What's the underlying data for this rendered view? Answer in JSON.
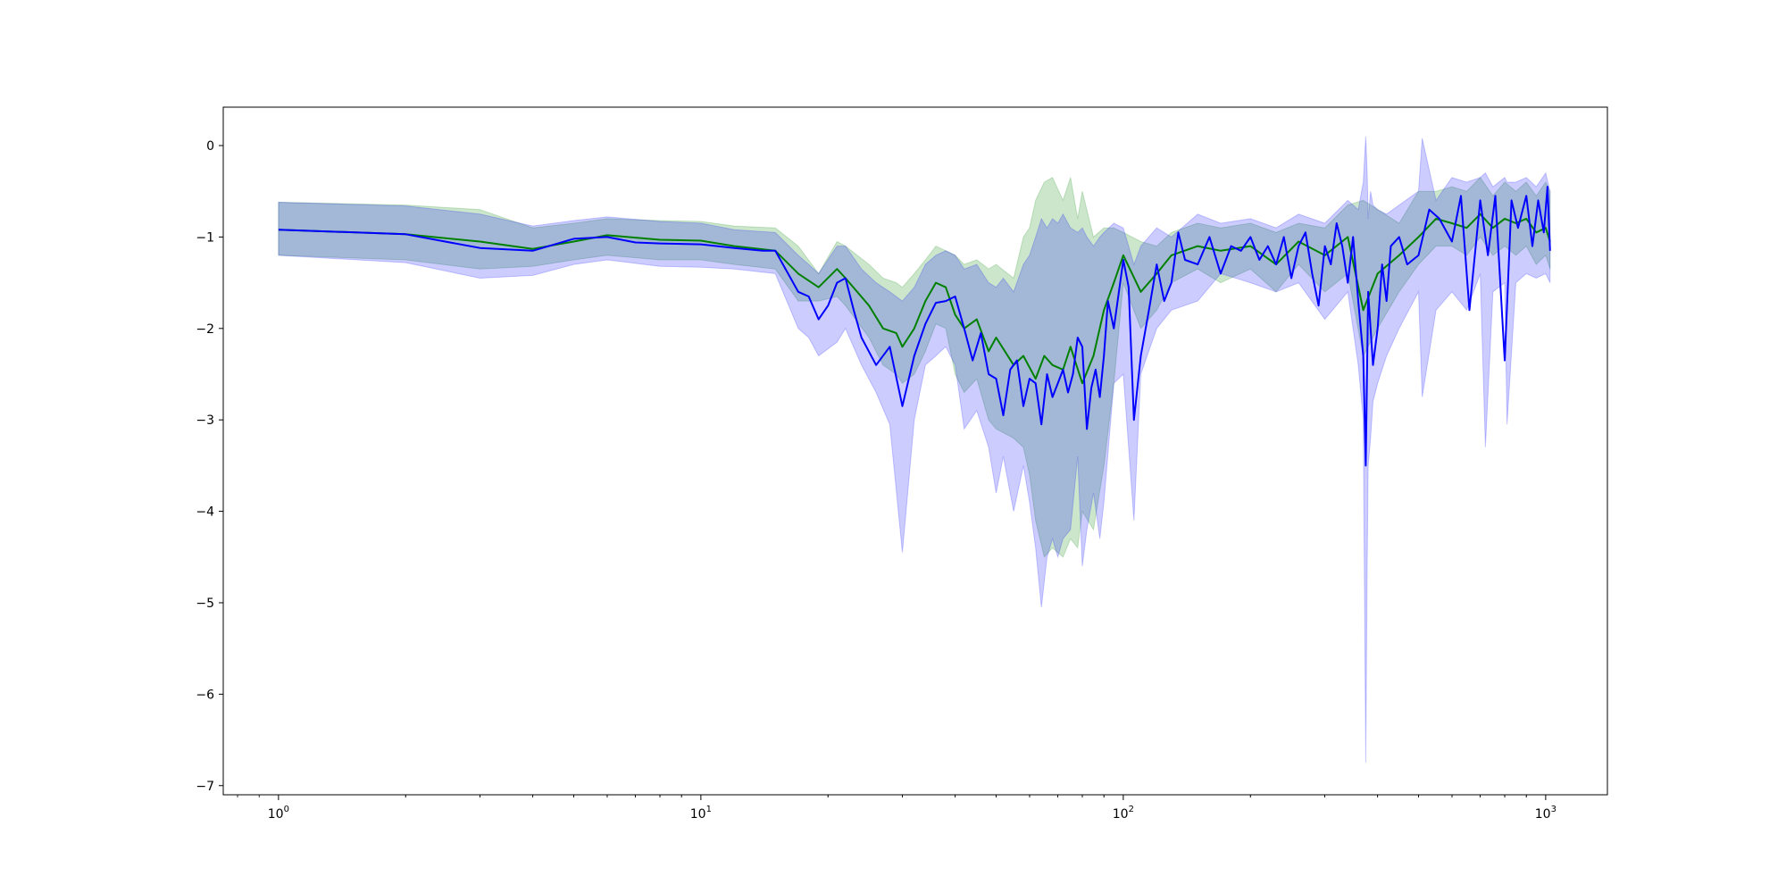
{
  "chart_data": {
    "type": "line",
    "title": "",
    "xlabel": "",
    "ylabel": "",
    "x_scale": "log",
    "xlim": [
      0.74,
      1400
    ],
    "ylim": [
      -7.1,
      0.42
    ],
    "x_ticks": [
      {
        "value": 1,
        "base": "10",
        "exp": "0"
      },
      {
        "value": 10,
        "base": "10",
        "exp": "1"
      },
      {
        "value": 100,
        "base": "10",
        "exp": "2"
      },
      {
        "value": 1000,
        "base": "10",
        "exp": "3"
      }
    ],
    "y_ticks": [
      0,
      -1,
      -2,
      -3,
      -4,
      -5,
      -6,
      -7
    ],
    "y_tick_labels": [
      "0",
      "−1",
      "−2",
      "−3",
      "−4",
      "−5",
      "−6",
      "−7"
    ],
    "grid": false,
    "legend": "none",
    "colors": {
      "green": "#008000",
      "blue": "#0000ff",
      "green_band": "#008000",
      "blue_band": "#0000ff"
    },
    "series": [
      {
        "color": "green",
        "x": [
          1,
          2,
          3,
          4,
          5,
          6,
          8,
          10,
          12,
          15,
          17,
          19,
          21,
          22,
          25,
          27,
          29,
          30,
          32,
          34,
          36,
          38,
          40,
          42,
          45,
          48,
          50,
          55,
          58,
          62,
          65,
          68,
          72,
          75,
          80,
          85,
          90,
          95,
          100,
          110,
          120,
          130,
          150,
          170,
          200,
          230,
          260,
          300,
          340,
          370,
          400,
          450,
          500,
          550,
          600,
          650,
          700,
          750,
          800,
          850,
          900,
          950,
          1000,
          1024
        ],
        "y": [
          -0.92,
          -0.97,
          -1.05,
          -1.13,
          -1.05,
          -0.98,
          -1.03,
          -1.04,
          -1.1,
          -1.15,
          -1.4,
          -1.55,
          -1.35,
          -1.45,
          -1.75,
          -2.0,
          -2.05,
          -2.2,
          -2.0,
          -1.7,
          -1.5,
          -1.55,
          -1.85,
          -2.0,
          -1.9,
          -2.25,
          -2.1,
          -2.4,
          -2.3,
          -2.55,
          -2.3,
          -2.4,
          -2.45,
          -2.2,
          -2.6,
          -2.3,
          -1.8,
          -1.5,
          -1.2,
          -1.6,
          -1.4,
          -1.2,
          -1.1,
          -1.15,
          -1.1,
          -1.3,
          -1.05,
          -1.2,
          -1.0,
          -1.8,
          -1.4,
          -1.2,
          -1.0,
          -0.8,
          -0.85,
          -0.9,
          -0.75,
          -0.9,
          -0.8,
          -0.85,
          -0.8,
          -0.95,
          -0.9,
          -1.05
        ]
      },
      {
        "color": "blue",
        "x": [
          1,
          2,
          3,
          4,
          5,
          6,
          7,
          8,
          10,
          12,
          14,
          15,
          17,
          18,
          19,
          20,
          21,
          22,
          23,
          24,
          26,
          28,
          30,
          32,
          34,
          36,
          38,
          40,
          42,
          44,
          46,
          48,
          50,
          52,
          54,
          56,
          58,
          60,
          62,
          64,
          66,
          68,
          70,
          72,
          74,
          76,
          78,
          80,
          82,
          84,
          86,
          88,
          90,
          92,
          95,
          100,
          103,
          106,
          110,
          115,
          120,
          125,
          130,
          135,
          140,
          150,
          160,
          170,
          180,
          190,
          200,
          210,
          220,
          230,
          240,
          250,
          260,
          270,
          280,
          290,
          300,
          310,
          320,
          330,
          340,
          350,
          360,
          370,
          375,
          380,
          390,
          400,
          410,
          420,
          430,
          450,
          470,
          500,
          530,
          560,
          600,
          630,
          660,
          700,
          730,
          760,
          800,
          830,
          860,
          900,
          930,
          960,
          990,
          1010,
          1024
        ],
        "y": [
          -0.92,
          -0.97,
          -1.12,
          -1.15,
          -1.02,
          -1.0,
          -1.06,
          -1.07,
          -1.08,
          -1.12,
          -1.15,
          -1.15,
          -1.6,
          -1.65,
          -1.9,
          -1.75,
          -1.5,
          -1.45,
          -1.8,
          -2.1,
          -2.4,
          -2.2,
          -2.85,
          -2.3,
          -1.95,
          -1.72,
          -1.7,
          -1.65,
          -2.0,
          -2.35,
          -2.05,
          -2.5,
          -2.55,
          -2.95,
          -2.45,
          -2.35,
          -2.85,
          -2.55,
          -2.6,
          -3.05,
          -2.5,
          -2.75,
          -2.6,
          -2.45,
          -2.7,
          -2.5,
          -2.1,
          -2.2,
          -3.1,
          -2.65,
          -2.45,
          -2.75,
          -2.3,
          -1.7,
          -2.0,
          -1.25,
          -1.55,
          -3.0,
          -2.3,
          -1.8,
          -1.3,
          -1.7,
          -1.5,
          -0.95,
          -1.25,
          -1.3,
          -1.0,
          -1.4,
          -1.1,
          -1.15,
          -1.0,
          -1.25,
          -1.1,
          -1.3,
          -1.0,
          -1.45,
          -1.1,
          -0.95,
          -1.4,
          -1.75,
          -1.1,
          -1.3,
          -0.85,
          -1.1,
          -1.5,
          -1.0,
          -1.7,
          -2.3,
          -3.5,
          -1.6,
          -2.4,
          -2.0,
          -1.3,
          -1.7,
          -1.1,
          -1.0,
          -1.3,
          -1.2,
          -0.7,
          -0.8,
          -1.05,
          -0.55,
          -1.8,
          -0.6,
          -1.2,
          -0.55,
          -2.35,
          -0.6,
          -0.9,
          -0.55,
          -1.1,
          -0.6,
          -0.95,
          -0.45,
          -1.15
        ]
      }
    ],
    "bands": [
      {
        "color": "green_band",
        "x": [
          1,
          2,
          3,
          4,
          5,
          6,
          8,
          10,
          12,
          15,
          17,
          19,
          21,
          22,
          25,
          27,
          29,
          30,
          32,
          34,
          36,
          38,
          40,
          42,
          45,
          48,
          50,
          55,
          58,
          60,
          62,
          65,
          68,
          72,
          75,
          78,
          80,
          85,
          90,
          95,
          100,
          110,
          120,
          130,
          150,
          170,
          200,
          230,
          260,
          300,
          340,
          370,
          400,
          450,
          500,
          550,
          600,
          650,
          700,
          750,
          800,
          850,
          900,
          950,
          1000,
          1024
        ],
        "upper": [
          -0.62,
          -0.65,
          -0.7,
          -0.9,
          -0.85,
          -0.8,
          -0.82,
          -0.83,
          -0.88,
          -0.9,
          -1.1,
          -1.4,
          -1.05,
          -1.1,
          -1.3,
          -1.45,
          -1.5,
          -1.55,
          -1.4,
          -1.25,
          -1.1,
          -1.15,
          -1.2,
          -1.3,
          -1.25,
          -1.35,
          -1.3,
          -1.45,
          -1.0,
          -0.9,
          -0.6,
          -0.4,
          -0.35,
          -0.6,
          -0.35,
          -0.8,
          -0.5,
          -1.0,
          -0.9,
          -0.9,
          -0.95,
          -1.05,
          -1.1,
          -0.95,
          -0.85,
          -0.9,
          -0.85,
          -0.95,
          -0.85,
          -0.9,
          -0.65,
          -0.6,
          -0.7,
          -0.85,
          -0.5,
          -0.5,
          -0.45,
          -0.5,
          -0.35,
          -0.55,
          -0.4,
          -0.5,
          -0.4,
          -0.55,
          -0.4,
          -0.5
        ],
        "lower": [
          -1.2,
          -1.25,
          -1.35,
          -1.32,
          -1.25,
          -1.2,
          -1.25,
          -1.25,
          -1.3,
          -1.35,
          -1.7,
          -1.7,
          -1.65,
          -1.75,
          -2.1,
          -2.4,
          -2.5,
          -2.6,
          -2.5,
          -2.25,
          -1.95,
          -2.0,
          -2.5,
          -2.7,
          -2.55,
          -3.0,
          -3.1,
          -3.2,
          -3.3,
          -3.6,
          -4.1,
          -4.5,
          -4.4,
          -4.5,
          -4.3,
          -4.4,
          -4.0,
          -4.2,
          -3.5,
          -2.6,
          -1.5,
          -2.0,
          -1.8,
          -1.5,
          -1.35,
          -1.5,
          -1.35,
          -1.6,
          -1.3,
          -1.6,
          -1.4,
          -2.3,
          -2.0,
          -1.6,
          -1.3,
          -1.1,
          -1.1,
          -1.2,
          -1.0,
          -1.2,
          -1.1,
          -1.2,
          -1.1,
          -1.3,
          -1.2,
          -1.35
        ]
      },
      {
        "color": "blue_band",
        "x": [
          1,
          2,
          3,
          4,
          5,
          6,
          8,
          10,
          12,
          15,
          17,
          18,
          19,
          21,
          22,
          24,
          26,
          28,
          30,
          32,
          34,
          36,
          38,
          40,
          42,
          45,
          48,
          50,
          52,
          55,
          58,
          60,
          62,
          64,
          66,
          68,
          70,
          72,
          75,
          78,
          80,
          82,
          85,
          88,
          90,
          95,
          100,
          106,
          110,
          120,
          130,
          150,
          170,
          200,
          230,
          260,
          300,
          340,
          360,
          370,
          375,
          378,
          380,
          385,
          390,
          400,
          420,
          450,
          500,
          510,
          550,
          600,
          650,
          700,
          720,
          750,
          800,
          810,
          850,
          900,
          950,
          1000,
          1024
        ],
        "upper": [
          -0.62,
          -0.66,
          -0.75,
          -0.88,
          -0.82,
          -0.78,
          -0.83,
          -0.85,
          -0.92,
          -0.95,
          -1.2,
          -1.3,
          -1.4,
          -1.1,
          -1.1,
          -1.35,
          -1.5,
          -1.6,
          -1.7,
          -1.55,
          -1.3,
          -1.2,
          -1.15,
          -1.2,
          -1.35,
          -1.3,
          -1.5,
          -1.55,
          -1.45,
          -1.6,
          -1.3,
          -1.2,
          -1.0,
          -0.8,
          -0.9,
          -0.8,
          -0.85,
          -0.75,
          -0.9,
          -0.95,
          -0.9,
          -1.0,
          -1.1,
          -1.0,
          -0.95,
          -0.85,
          -0.9,
          -1.3,
          -1.1,
          -0.9,
          -1.0,
          -0.75,
          -0.85,
          -0.8,
          -0.9,
          -0.75,
          -0.85,
          -0.6,
          -0.7,
          -0.4,
          0.1,
          -0.3,
          -0.8,
          -0.5,
          -0.65,
          -0.7,
          -0.75,
          -0.65,
          -0.5,
          0.08,
          -0.6,
          -0.35,
          -0.4,
          -0.35,
          -0.3,
          -0.45,
          -0.35,
          -0.4,
          -0.4,
          -0.35,
          -0.45,
          -0.3,
          -0.5
        ],
        "lower": [
          -1.2,
          -1.28,
          -1.45,
          -1.42,
          -1.3,
          -1.25,
          -1.32,
          -1.33,
          -1.35,
          -1.4,
          -2.0,
          -2.1,
          -2.3,
          -2.15,
          -2.0,
          -2.4,
          -2.7,
          -3.05,
          -4.45,
          -3.0,
          -2.4,
          -2.3,
          -2.2,
          -2.4,
          -3.1,
          -2.9,
          -3.3,
          -3.8,
          -3.4,
          -4.0,
          -3.5,
          -3.9,
          -4.4,
          -5.05,
          -4.5,
          -4.3,
          -4.5,
          -4.3,
          -4.2,
          -3.4,
          -4.6,
          -4.2,
          -3.8,
          -4.3,
          -3.9,
          -2.6,
          -2.5,
          -4.1,
          -2.5,
          -2.0,
          -1.8,
          -1.7,
          -1.4,
          -1.5,
          -1.6,
          -1.5,
          -1.9,
          -1.6,
          -2.4,
          -3.0,
          -6.75,
          -4.6,
          -3.5,
          -3.2,
          -2.8,
          -2.6,
          -2.3,
          -2.0,
          -1.6,
          -2.75,
          -1.8,
          -1.6,
          -1.8,
          -1.4,
          -3.3,
          -1.6,
          -1.5,
          -3.05,
          -1.5,
          -1.4,
          -1.45,
          -1.4,
          -1.5
        ]
      }
    ]
  }
}
